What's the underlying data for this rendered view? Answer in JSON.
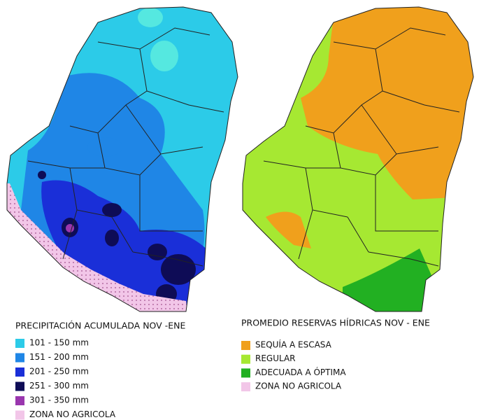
{
  "legends": [
    {
      "title": "PRECIPITACIÓN ACUMULADA NOV -ENE",
      "items": [
        {
          "label": "101 - 150 mm",
          "color": "#2ccbe8"
        },
        {
          "label": "151 - 200 mm",
          "color": "#1f86e6"
        },
        {
          "label": "201 - 250 mm",
          "color": "#1a2fd8"
        },
        {
          "label": "251 - 300 mm",
          "color": "#0e0c56"
        },
        {
          "label": "301 - 350 mm",
          "color": "#9a36ae"
        },
        {
          "label": "ZONA NO AGRICOLA",
          "color": "#f2c6e8"
        }
      ]
    },
    {
      "title": "PROMEDIO RESERVAS HÍDRICAS NOV - ENE",
      "items": [
        {
          "label": "SEQUÍA A ESCASA",
          "color": "#f0a01c"
        },
        {
          "label": "REGULAR",
          "color": "#a6e832"
        },
        {
          "label": "ADECUADA A ÓPTIMA",
          "color": "#22b022"
        },
        {
          "label": "ZONA NO AGRICOLA",
          "color": "#f2c6e8"
        }
      ]
    }
  ]
}
